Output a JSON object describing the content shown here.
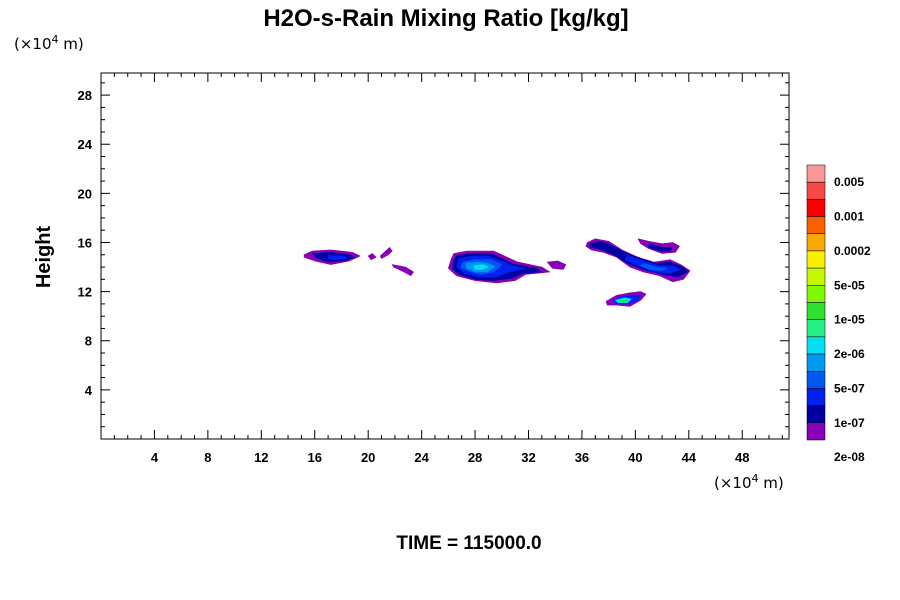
{
  "chart_data": {
    "type": "filled-contour",
    "title": "H2O-s-Rain Mixing Ratio [kg/kg]",
    "ylabel": "Height",
    "x_unit_prefix": "(×10",
    "x_unit_exp": "4",
    "x_unit_suffix": " m)",
    "y_unit_prefix": "(×10",
    "y_unit_exp": "4",
    "y_unit_suffix": " m)",
    "xlim": [
      0,
      51.5
    ],
    "ylim": [
      0,
      29.8
    ],
    "x_ticks": [
      "4",
      "8",
      "12",
      "16",
      "20",
      "24",
      "28",
      "32",
      "36",
      "40",
      "44",
      "48"
    ],
    "y_ticks": [
      "4",
      "8",
      "12",
      "16",
      "20",
      "24",
      "28"
    ],
    "time_label": "TIME = 115000.0",
    "colorbar": {
      "colors": [
        "#f89898",
        "#f84848",
        "#f80000",
        "#f86000",
        "#f8a800",
        "#f8f000",
        "#c8f800",
        "#80f800",
        "#30e030",
        "#28f088",
        "#00e0f0",
        "#0098f0",
        "#0058f0",
        "#0020f0",
        "#0000a0",
        "#8800b8"
      ],
      "labels": [
        "0.005",
        "0.001",
        "0.0002",
        "5e-05",
        "1e-05",
        "2e-06",
        "5e-07",
        "1e-07",
        "2e-08"
      ]
    },
    "regions": [
      {
        "level": 15,
        "points": [
          [
            15.2,
            15.0
          ],
          [
            15.8,
            15.3
          ],
          [
            17.2,
            15.4
          ],
          [
            18.8,
            15.2
          ],
          [
            19.4,
            14.9
          ],
          [
            18.6,
            14.5
          ],
          [
            17.2,
            14.2
          ],
          [
            16.0,
            14.5
          ],
          [
            15.2,
            14.8
          ]
        ]
      },
      {
        "level": 14,
        "points": [
          [
            15.8,
            15.1
          ],
          [
            17.2,
            15.2
          ],
          [
            18.6,
            15.0
          ],
          [
            19.0,
            14.8
          ],
          [
            18.2,
            14.5
          ],
          [
            17.0,
            14.4
          ],
          [
            16.2,
            14.7
          ]
        ]
      },
      {
        "level": 13,
        "points": [
          [
            17.0,
            14.95
          ],
          [
            18.2,
            14.9
          ],
          [
            18.4,
            14.7
          ],
          [
            17.6,
            14.6
          ],
          [
            17.0,
            14.7
          ]
        ]
      },
      {
        "level": 15,
        "points": [
          [
            20.0,
            14.9
          ],
          [
            20.3,
            15.1
          ],
          [
            20.6,
            14.8
          ],
          [
            20.2,
            14.6
          ]
        ]
      },
      {
        "level": 15,
        "points": [
          [
            21.3,
            15.3
          ],
          [
            21.6,
            15.6
          ],
          [
            21.8,
            15.3
          ],
          [
            21.5,
            15.0
          ],
          [
            21.0,
            14.7
          ],
          [
            20.9,
            14.9
          ]
        ]
      },
      {
        "level": 15,
        "points": [
          [
            21.8,
            14.2
          ],
          [
            22.8,
            14.0
          ],
          [
            23.4,
            13.6
          ],
          [
            23.2,
            13.3
          ],
          [
            22.5,
            13.7
          ],
          [
            21.9,
            14.0
          ]
        ]
      },
      {
        "level": 15,
        "points": [
          [
            26.4,
            15.1
          ],
          [
            27.4,
            15.3
          ],
          [
            29.4,
            15.3
          ],
          [
            30.4,
            14.8
          ],
          [
            31.2,
            14.4
          ],
          [
            33.0,
            14.0
          ],
          [
            33.6,
            13.6
          ],
          [
            31.8,
            13.4
          ],
          [
            31.0,
            12.9
          ],
          [
            29.6,
            12.7
          ],
          [
            28.0,
            12.9
          ],
          [
            26.6,
            13.3
          ],
          [
            26.0,
            13.9
          ],
          [
            26.2,
            14.6
          ]
        ]
      },
      {
        "level": 14,
        "points": [
          [
            26.6,
            14.9
          ],
          [
            27.6,
            15.1
          ],
          [
            29.2,
            15.1
          ],
          [
            30.2,
            14.6
          ],
          [
            31.0,
            14.2
          ],
          [
            32.6,
            13.9
          ],
          [
            33.0,
            13.6
          ],
          [
            31.6,
            13.5
          ],
          [
            30.8,
            13.1
          ],
          [
            29.4,
            12.9
          ],
          [
            28.0,
            13.0
          ],
          [
            26.8,
            13.4
          ],
          [
            26.3,
            13.9
          ],
          [
            26.4,
            14.5
          ]
        ]
      },
      {
        "level": 13,
        "points": [
          [
            26.8,
            14.7
          ],
          [
            27.8,
            14.9
          ],
          [
            29.0,
            14.9
          ],
          [
            30.0,
            14.5
          ],
          [
            30.8,
            14.1
          ],
          [
            31.8,
            13.9
          ],
          [
            30.6,
            13.6
          ],
          [
            29.6,
            13.2
          ],
          [
            28.2,
            13.2
          ],
          [
            27.2,
            13.5
          ],
          [
            26.6,
            14.0
          ]
        ]
      },
      {
        "level": 12,
        "points": [
          [
            27.1,
            14.4
          ],
          [
            28.0,
            14.6
          ],
          [
            29.2,
            14.6
          ],
          [
            30.0,
            14.2
          ],
          [
            29.4,
            13.6
          ],
          [
            28.4,
            13.4
          ],
          [
            27.4,
            13.7
          ],
          [
            26.9,
            14.0
          ]
        ]
      },
      {
        "level": 11,
        "points": [
          [
            27.3,
            14.3
          ],
          [
            28.2,
            14.4
          ],
          [
            29.0,
            14.3
          ],
          [
            29.5,
            14.0
          ],
          [
            28.9,
            13.6
          ],
          [
            28.0,
            13.6
          ],
          [
            27.4,
            13.9
          ]
        ]
      },
      {
        "level": 10,
        "points": [
          [
            27.9,
            14.1
          ],
          [
            28.6,
            14.2
          ],
          [
            29.0,
            14.0
          ],
          [
            28.6,
            13.8
          ],
          [
            28.0,
            13.8
          ]
        ]
      },
      {
        "level": 15,
        "points": [
          [
            33.4,
            14.4
          ],
          [
            34.2,
            14.5
          ],
          [
            34.8,
            14.2
          ],
          [
            34.6,
            13.8
          ],
          [
            33.8,
            13.9
          ]
        ]
      },
      {
        "level": 15,
        "points": [
          [
            36.4,
            16.0
          ],
          [
            37.0,
            16.3
          ],
          [
            38.0,
            16.1
          ],
          [
            39.0,
            15.4
          ],
          [
            40.2,
            14.8
          ],
          [
            41.4,
            14.4
          ],
          [
            42.6,
            14.6
          ],
          [
            43.4,
            14.2
          ],
          [
            44.1,
            13.7
          ],
          [
            43.6,
            13.0
          ],
          [
            42.8,
            12.8
          ],
          [
            41.8,
            13.3
          ],
          [
            40.6,
            13.6
          ],
          [
            39.6,
            14.0
          ],
          [
            38.6,
            14.8
          ],
          [
            37.6,
            15.2
          ],
          [
            36.7,
            15.4
          ],
          [
            36.3,
            15.7
          ]
        ]
      },
      {
        "level": 14,
        "points": [
          [
            36.6,
            15.9
          ],
          [
            37.4,
            16.1
          ],
          [
            38.2,
            15.8
          ],
          [
            39.2,
            15.2
          ],
          [
            40.4,
            14.7
          ],
          [
            41.6,
            14.3
          ],
          [
            42.6,
            14.4
          ],
          [
            43.6,
            14.0
          ],
          [
            43.9,
            13.6
          ],
          [
            43.2,
            13.2
          ],
          [
            42.0,
            13.4
          ],
          [
            40.6,
            13.8
          ],
          [
            39.4,
            14.3
          ],
          [
            38.4,
            15.0
          ],
          [
            37.2,
            15.5
          ],
          [
            36.6,
            15.6
          ]
        ]
      },
      {
        "level": 13,
        "points": [
          [
            39.4,
            15.0
          ],
          [
            40.6,
            14.5
          ],
          [
            41.8,
            14.1
          ],
          [
            42.8,
            14.1
          ],
          [
            43.4,
            13.8
          ],
          [
            42.6,
            13.5
          ],
          [
            41.4,
            13.6
          ],
          [
            40.2,
            14.1
          ],
          [
            39.2,
            14.6
          ]
        ]
      },
      {
        "level": 12,
        "points": [
          [
            40.6,
            14.3
          ],
          [
            41.6,
            14.0
          ],
          [
            42.4,
            13.9
          ],
          [
            42.0,
            13.7
          ],
          [
            41.0,
            13.8
          ],
          [
            40.4,
            14.1
          ]
        ]
      },
      {
        "level": 15,
        "points": [
          [
            40.2,
            16.3
          ],
          [
            41.0,
            16.1
          ],
          [
            42.0,
            15.9
          ],
          [
            42.8,
            16.0
          ],
          [
            43.3,
            15.7
          ],
          [
            43.0,
            15.2
          ],
          [
            42.0,
            15.1
          ],
          [
            41.0,
            15.5
          ],
          [
            40.4,
            15.9
          ]
        ]
      },
      {
        "level": 14,
        "points": [
          [
            41.0,
            15.9
          ],
          [
            42.0,
            15.6
          ],
          [
            42.8,
            15.6
          ],
          [
            42.6,
            15.3
          ],
          [
            41.8,
            15.3
          ],
          [
            41.0,
            15.6
          ]
        ]
      },
      {
        "level": 15,
        "points": [
          [
            37.8,
            11.2
          ],
          [
            38.6,
            11.7
          ],
          [
            39.6,
            11.9
          ],
          [
            40.4,
            12.0
          ],
          [
            40.8,
            11.8
          ],
          [
            40.4,
            11.3
          ],
          [
            39.6,
            10.8
          ],
          [
            38.6,
            10.9
          ],
          [
            37.9,
            10.9
          ]
        ]
      },
      {
        "level": 13,
        "points": [
          [
            38.3,
            11.3
          ],
          [
            39.0,
            11.6
          ],
          [
            39.8,
            11.7
          ],
          [
            40.4,
            11.7
          ],
          [
            40.2,
            11.3
          ],
          [
            39.5,
            11.0
          ],
          [
            38.6,
            11.0
          ]
        ]
      },
      {
        "level": 10,
        "points": [
          [
            38.5,
            11.3
          ],
          [
            39.2,
            11.5
          ],
          [
            39.7,
            11.4
          ],
          [
            39.4,
            11.1
          ],
          [
            38.7,
            11.1
          ]
        ]
      },
      {
        "level": 8,
        "points": [
          [
            38.8,
            11.3
          ],
          [
            39.3,
            11.4
          ],
          [
            39.4,
            11.2
          ],
          [
            38.9,
            11.2
          ]
        ]
      }
    ]
  }
}
